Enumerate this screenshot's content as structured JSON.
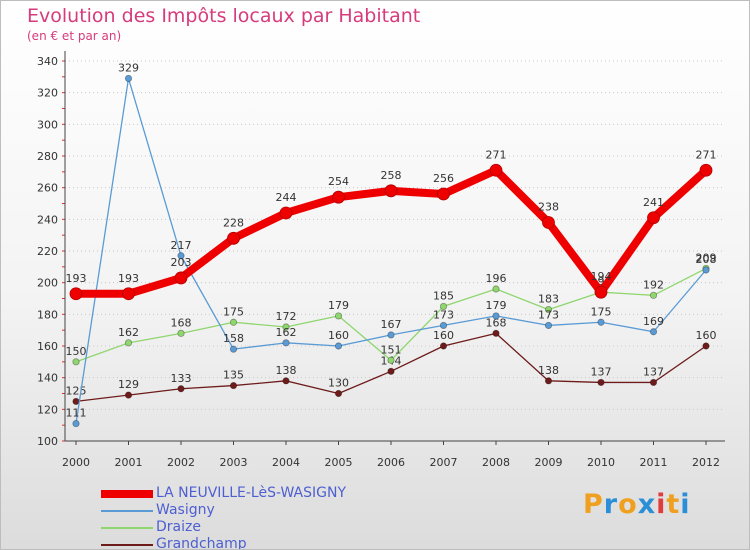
{
  "title": "Evolution des Impôts locaux par Habitant",
  "subtitle": "(en € et par an)",
  "logo": {
    "letters": [
      "P",
      "r",
      "o",
      "x",
      "i",
      "t",
      "i"
    ],
    "colors": [
      "#f0a020",
      "#2a8fd6",
      "#f0a020",
      "#2a8fd6",
      "#e03c3c",
      "#f0a020",
      "#2a8fd6"
    ]
  },
  "chart_data": {
    "type": "line",
    "x": [
      "2000",
      "2001",
      "2002",
      "2003",
      "2004",
      "2005",
      "2006",
      "2007",
      "2008",
      "2009",
      "2010",
      "2011",
      "2012"
    ],
    "y_ticks": [
      100,
      120,
      140,
      160,
      180,
      200,
      220,
      240,
      260,
      280,
      300,
      320,
      340
    ],
    "ylim": [
      100,
      340
    ],
    "grid": "horizontal-dotted",
    "legend_position": "bottom-left",
    "series": [
      {
        "name": "Grandchamp",
        "color": "#6e1b1b",
        "width": 1.3,
        "values": [
          125,
          129,
          133,
          135,
          138,
          130,
          144,
          160,
          168,
          138,
          137,
          137,
          160
        ]
      },
      {
        "name": "Draize",
        "color": "#8fd66e",
        "width": 1.3,
        "values": [
          150,
          162,
          168,
          175,
          172,
          179,
          151,
          185,
          196,
          183,
          194,
          192,
          209
        ]
      },
      {
        "name": "Wasigny",
        "color": "#5a9bd5",
        "width": 1.3,
        "values": [
          111,
          329,
          217,
          158,
          162,
          160,
          167,
          173,
          179,
          173,
          175,
          169,
          208
        ]
      },
      {
        "name": "LA NEUVILLE-LèS-WASIGNY",
        "color": "#ef0000",
        "width": 8,
        "values": [
          193,
          193,
          203,
          228,
          244,
          254,
          258,
          256,
          271,
          238,
          194,
          241,
          271
        ]
      }
    ],
    "legend": [
      {
        "name": "LA NEUVILLE-LèS-WASIGNY",
        "color": "#ef0000",
        "width": 8,
        "label_color": "#4d5fd1"
      },
      {
        "name": "Wasigny",
        "color": "#5a9bd5",
        "width": 2,
        "label_color": "#4d5fd1"
      },
      {
        "name": "Draize",
        "color": "#8fd66e",
        "width": 2,
        "label_color": "#4d5fd1"
      },
      {
        "name": "Grandchamp",
        "color": "#6e1b1b",
        "width": 2,
        "label_color": "#4d5fd1"
      }
    ]
  }
}
